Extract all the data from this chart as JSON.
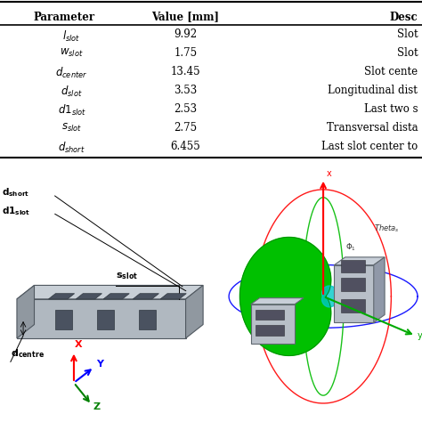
{
  "background_color": "#ffffff",
  "text_color": "#000000",
  "table_font_size": 8.5,
  "rows": [
    {
      "param": "l",
      "sub": "slot",
      "sub_italic": true,
      "value": "9.92",
      "desc": "Slot"
    },
    {
      "param": "w",
      "sub": "slot",
      "sub_italic": true,
      "value": "1.75",
      "desc": "Slot"
    },
    {
      "param": "d",
      "sub": "center",
      "sub_italic": true,
      "value": "13.45",
      "desc": "Slot cente"
    },
    {
      "param": "d",
      "sub": "slot",
      "sub_italic": true,
      "value": "3.53",
      "desc": "Longitudinal dist"
    },
    {
      "param": "d1",
      "sub": "slot",
      "sub_italic": true,
      "value": "2.53",
      "desc": "Last two s"
    },
    {
      "param": "s",
      "sub": "slot",
      "sub_italic": true,
      "value": "2.75",
      "desc": "Transversal dista"
    },
    {
      "param": "d",
      "sub": "short",
      "sub_italic": true,
      "value": "6.455",
      "desc": "Last slot center to"
    }
  ],
  "waveguide_color_top": "#c8cfd6",
  "waveguide_color_front": "#b0b8c0",
  "waveguide_color_side": "#9098a0",
  "waveguide_edge_color": "#505860",
  "slot_color": "#606870",
  "bottom_bg": "#ffffff"
}
